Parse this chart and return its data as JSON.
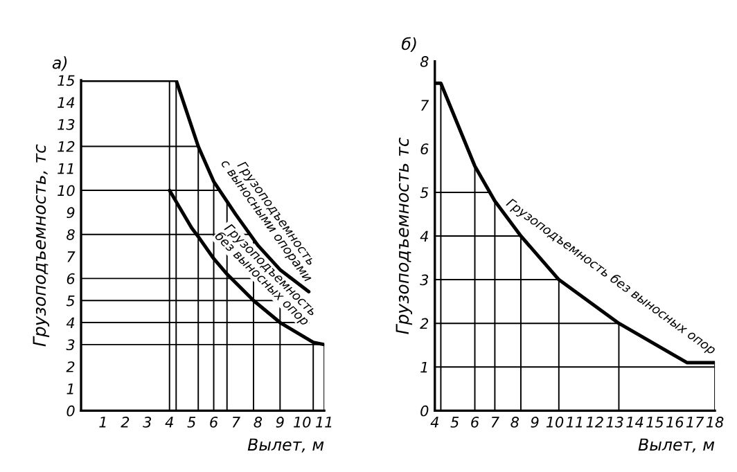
{
  "chart_data": [
    {
      "type": "line",
      "title": "а)",
      "xlabel": "Вылет, м",
      "ylabel": "Грузоподъемность, тс",
      "xlim": [
        0,
        11
      ],
      "xticks": [
        1,
        2,
        3,
        4,
        5,
        6,
        7,
        8,
        9,
        10,
        11
      ],
      "ylim": [
        0,
        15
      ],
      "yticks": [
        0,
        1,
        2,
        3,
        4,
        5,
        6,
        7,
        8,
        9,
        10,
        11,
        12,
        13,
        14,
        15
      ],
      "grid": false,
      "legend": false,
      "marker": "none",
      "line_style": "solid",
      "series": [
        {
          "name": "Грузоподъемность\nс выносными опорами",
          "color": "#000000",
          "x": [
            0,
            4.3,
            5.3,
            6,
            7,
            8,
            9,
            10.3
          ],
          "values": [
            15,
            15,
            12,
            10.4,
            8.9,
            7.5,
            6.4,
            5.4
          ]
        },
        {
          "name": "Грузоподъемность\nбез выносных опор",
          "color": "#000000",
          "x": [
            4,
            5,
            5.3,
            6,
            6.6,
            7.8,
            9,
            10.5,
            11
          ],
          "values": [
            10,
            8.3,
            7.9,
            6.9,
            6.2,
            5,
            4,
            3.1,
            3
          ]
        }
      ],
      "ref_lines": [
        {
          "axis": "y",
          "value": 12
        },
        {
          "axis": "y",
          "value": 10
        },
        {
          "axis": "y",
          "value": 8
        },
        {
          "axis": "y",
          "value": 6
        },
        {
          "axis": "y",
          "value": 5
        },
        {
          "axis": "y",
          "value": 4
        },
        {
          "axis": "y",
          "value": 3
        },
        {
          "axis": "x",
          "value": 4
        },
        {
          "axis": "x",
          "value": 4.3
        },
        {
          "axis": "x",
          "value": 5.3
        },
        {
          "axis": "x",
          "value": 6
        },
        {
          "axis": "x",
          "value": 6.6
        },
        {
          "axis": "x",
          "value": 7.8
        },
        {
          "axis": "x",
          "value": 9
        },
        {
          "axis": "x",
          "value": 10.5
        },
        {
          "axis": "x",
          "value": 11
        }
      ]
    },
    {
      "type": "line",
      "title": "б)",
      "xlabel": "Вылет, м",
      "ylabel": "Грузоподъемность тс",
      "xlim": [
        4,
        18
      ],
      "xticks": [
        4,
        5,
        6,
        7,
        8,
        9,
        10,
        11,
        12,
        13,
        14,
        15,
        16,
        17,
        18
      ],
      "ylim": [
        0,
        8
      ],
      "yticks": [
        0,
        1,
        2,
        3,
        4,
        5,
        6,
        7,
        8
      ],
      "grid": false,
      "legend": false,
      "marker": "none",
      "line_style": "solid",
      "series": [
        {
          "name": "Грузоподъемность без выносных опор",
          "color": "#000000",
          "x": [
            4,
            4.3,
            6,
            7,
            8.3,
            10.2,
            13.2,
            16.6,
            18
          ],
          "values": [
            7.5,
            7.5,
            5.6,
            4.8,
            4,
            3,
            2,
            1.1,
            1.1
          ]
        }
      ],
      "ref_lines": [
        {
          "axis": "y",
          "value": 5
        },
        {
          "axis": "y",
          "value": 4
        },
        {
          "axis": "y",
          "value": 3
        },
        {
          "axis": "y",
          "value": 2
        },
        {
          "axis": "y",
          "value": 1
        },
        {
          "axis": "x",
          "value": 4.3
        },
        {
          "axis": "x",
          "value": 6
        },
        {
          "axis": "x",
          "value": 7
        },
        {
          "axis": "x",
          "value": 8.3
        },
        {
          "axis": "x",
          "value": 10.2
        },
        {
          "axis": "x",
          "value": 13.2
        },
        {
          "axis": "x",
          "value": 18
        }
      ]
    }
  ]
}
